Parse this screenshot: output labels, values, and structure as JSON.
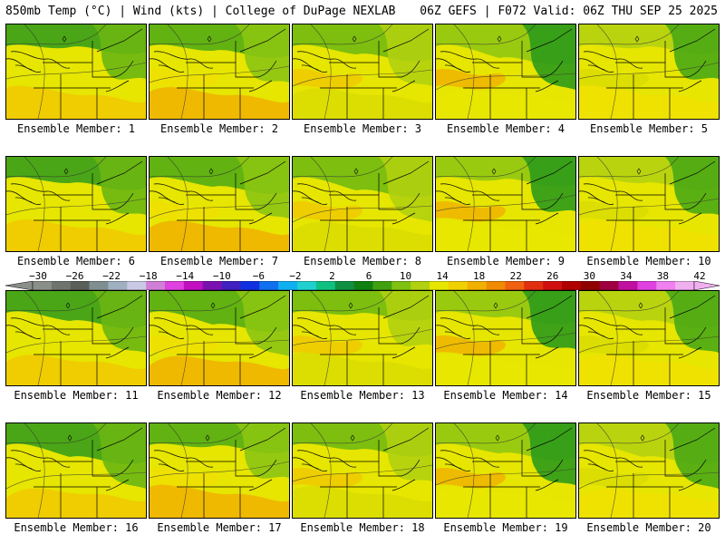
{
  "header": {
    "left": "850mb Temp (°C) | Wind (kts) | College of DuPage NEXLAB",
    "right": "06Z GEFS | F072 Valid: 06Z THU SEP 25 2025"
  },
  "members": [
    {
      "label": "Ensemble Member: 1"
    },
    {
      "label": "Ensemble Member: 2"
    },
    {
      "label": "Ensemble Member: 3"
    },
    {
      "label": "Ensemble Member: 4"
    },
    {
      "label": "Ensemble Member: 5"
    },
    {
      "label": "Ensemble Member: 6"
    },
    {
      "label": "Ensemble Member: 7"
    },
    {
      "label": "Ensemble Member: 8"
    },
    {
      "label": "Ensemble Member: 9"
    },
    {
      "label": "Ensemble Member: 10"
    },
    {
      "label": "Ensemble Member: 11"
    },
    {
      "label": "Ensemble Member: 12"
    },
    {
      "label": "Ensemble Member: 13"
    },
    {
      "label": "Ensemble Member: 14"
    },
    {
      "label": "Ensemble Member: 15"
    },
    {
      "label": "Ensemble Member: 16"
    },
    {
      "label": "Ensemble Member: 17"
    },
    {
      "label": "Ensemble Member: 18"
    },
    {
      "label": "Ensemble Member: 19"
    },
    {
      "label": "Ensemble Member: 20"
    }
  ],
  "colorbar": {
    "ticks": [
      "−30",
      "−26",
      "−22",
      "−18",
      "−14",
      "−10",
      "−6",
      "−2",
      "2",
      "6",
      "10",
      "14",
      "18",
      "22",
      "26",
      "30",
      "34",
      "38",
      "42"
    ],
    "colors": [
      "#8a8f8a",
      "#6f746f",
      "#5a5f5a",
      "#7f8f8f",
      "#9fb0c0",
      "#c9c9e6",
      "#d07fd6",
      "#e040e0",
      "#c010c0",
      "#7a10b0",
      "#4020c0",
      "#1030e0",
      "#1070f0",
      "#10b0f0",
      "#20d0d0",
      "#10c080",
      "#109040",
      "#108010",
      "#40a010",
      "#80c010",
      "#b0d010",
      "#e6e600",
      "#f0d000",
      "#f0b000",
      "#f08a00",
      "#f06010",
      "#e03010",
      "#d01010",
      "#b00000",
      "#900000",
      "#a00040",
      "#c010a0",
      "#e040e0",
      "#f080f0",
      "#f0b0f0"
    ]
  }
}
